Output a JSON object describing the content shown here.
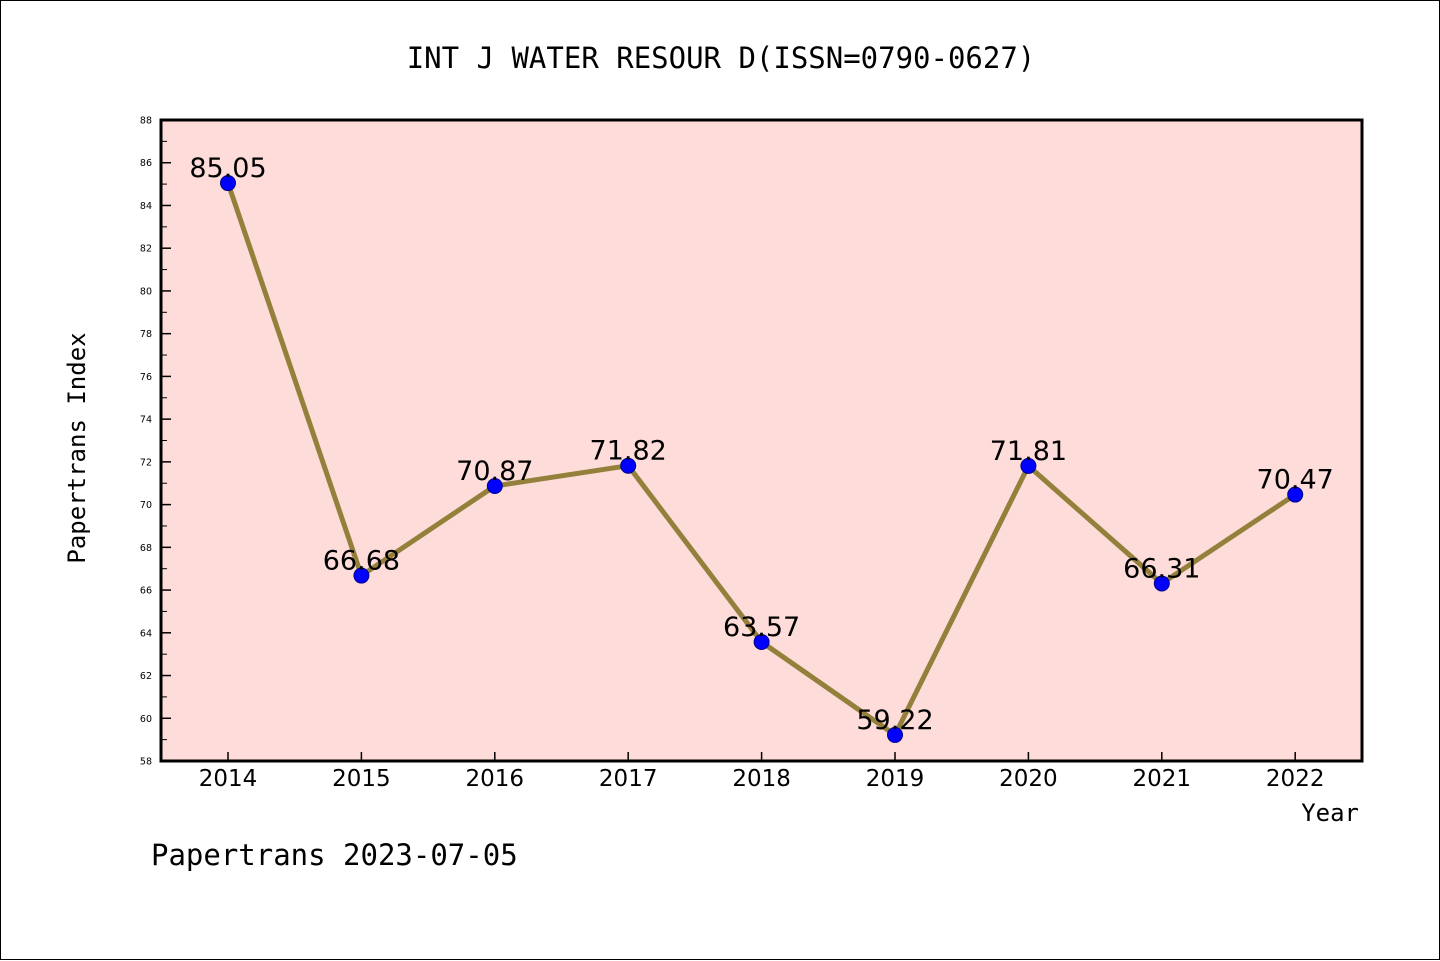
{
  "chart_data": {
    "type": "line",
    "title": "INT J WATER RESOUR D(ISSN=0790-0627)",
    "xlabel": "Year",
    "ylabel": "Papertrans Index",
    "footer": "Papertrans 2023-07-05",
    "x": [
      "2014",
      "2015",
      "2016",
      "2017",
      "2018",
      "2019",
      "2020",
      "2021",
      "2022"
    ],
    "series": [
      {
        "values": [
          85.05,
          66.68,
          70.87,
          71.82,
          63.57,
          59.22,
          71.81,
          66.31,
          70.47
        ],
        "labels": [
          "85.05",
          "66.68",
          "70.87",
          "71.82",
          "63.57",
          "59.22",
          "71.81",
          "66.31",
          "70.47"
        ]
      }
    ],
    "ylim": [
      58,
      88
    ],
    "yticks": [
      "58",
      "60",
      "62",
      "64",
      "66",
      "68",
      "70",
      "72",
      "74",
      "76",
      "78",
      "80",
      "82",
      "84",
      "86",
      "88"
    ],
    "grid": false,
    "colors": {
      "plot_background": "#fddcd9",
      "line": "#94803a",
      "marker": "#0000ff",
      "frame": "#000000"
    }
  }
}
